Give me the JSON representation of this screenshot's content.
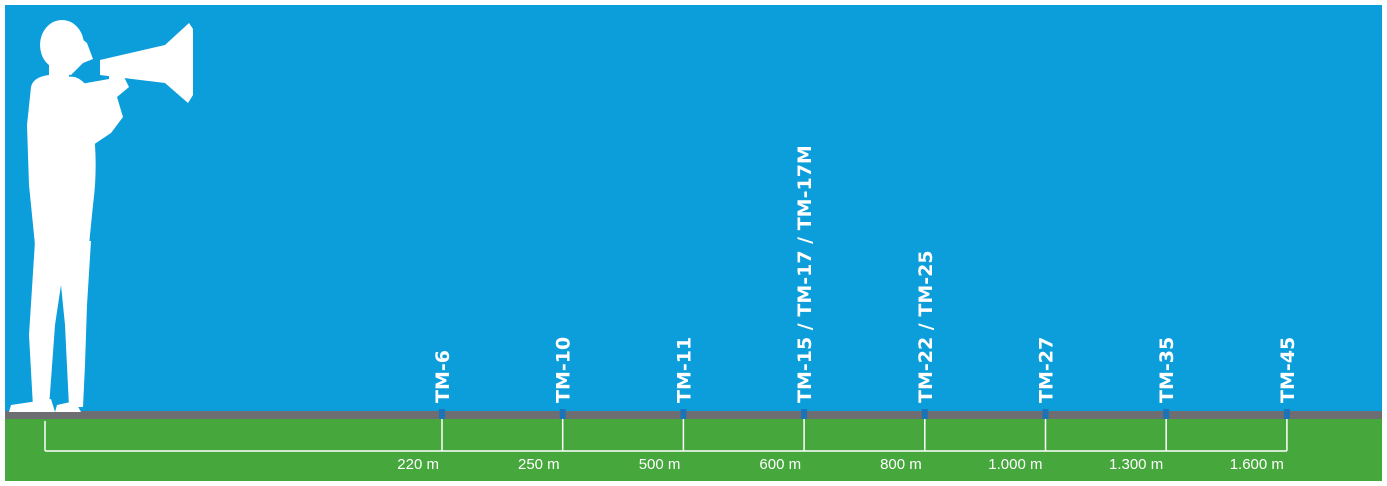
{
  "colors": {
    "sky": "#0b9edb",
    "ground": "#46a83c",
    "road": "#6d6e71",
    "marker": "#1b74b8",
    "figure": "#ffffff",
    "text": "#ffffff"
  },
  "figure": {
    "icon": "person-with-megaphone-silhouette"
  },
  "chart_data": {
    "type": "timeline",
    "markers": [
      {
        "model": "TM-6",
        "distance": "220 m",
        "distance_m": 220
      },
      {
        "model": "TM-10",
        "distance": "250 m",
        "distance_m": 250
      },
      {
        "model": "TM-11",
        "distance": "500 m",
        "distance_m": 500
      },
      {
        "model": "TM-15 / TM-17 / TM-17M",
        "distance": "600 m",
        "distance_m": 600
      },
      {
        "model": "TM-22 / TM-25",
        "distance": "800 m",
        "distance_m": 800
      },
      {
        "model": "TM-27",
        "distance": "1.000 m",
        "distance_m": 1000
      },
      {
        "model": "TM-35",
        "distance": "1.300 m",
        "distance_m": 1300
      },
      {
        "model": "TM-45",
        "distance": "1.600 m",
        "distance_m": 1600
      }
    ]
  }
}
